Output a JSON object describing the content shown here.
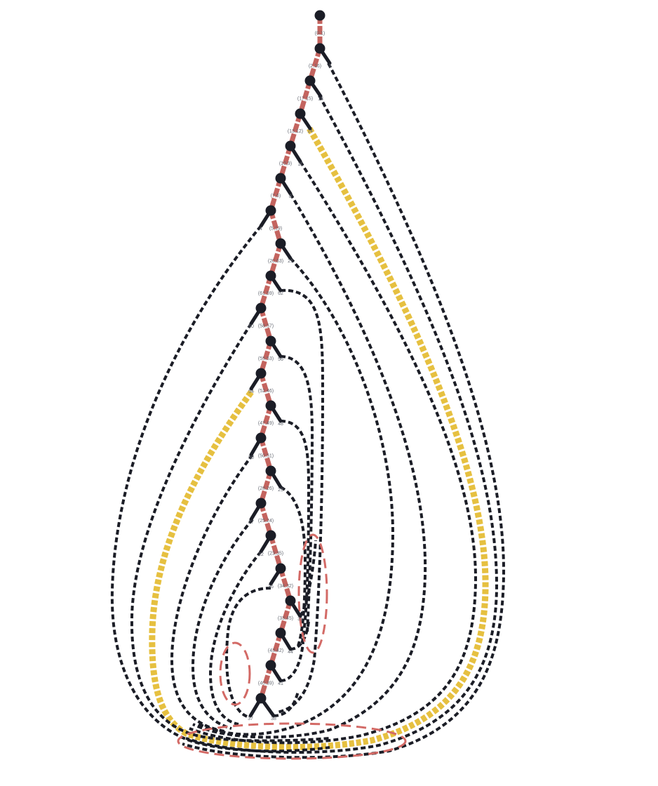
{
  "colors": {
    "background": "#ffffff",
    "node": "#1b1d26",
    "spine": "#c4645f",
    "highlight": "#e6c040",
    "loop_marker": "#d36a66"
  },
  "pair_labels": [
    "(0,1)",
    "(2,16)",
    "(17,15)",
    "(13,12)",
    "(10,9)",
    "(7,6)",
    "(5,19)",
    "(20,63)",
    "(61,59)",
    "(58,57)",
    "(55,53)",
    "(52,46)",
    "(47,49)",
    "(50,51)",
    "(28,26)",
    "(25,24)",
    "(23,35)",
    "(34,32)",
    "(33,45)",
    "(43,42)",
    "(40,39)"
  ],
  "leaf_labels": [
    "3",
    "18",
    "14",
    "11",
    "8",
    "4",
    "21",
    "62",
    "60",
    "56",
    "54",
    "48",
    "50",
    "29",
    "27",
    "22",
    "36",
    "31",
    "44",
    "41",
    "37",
    "38"
  ]
}
